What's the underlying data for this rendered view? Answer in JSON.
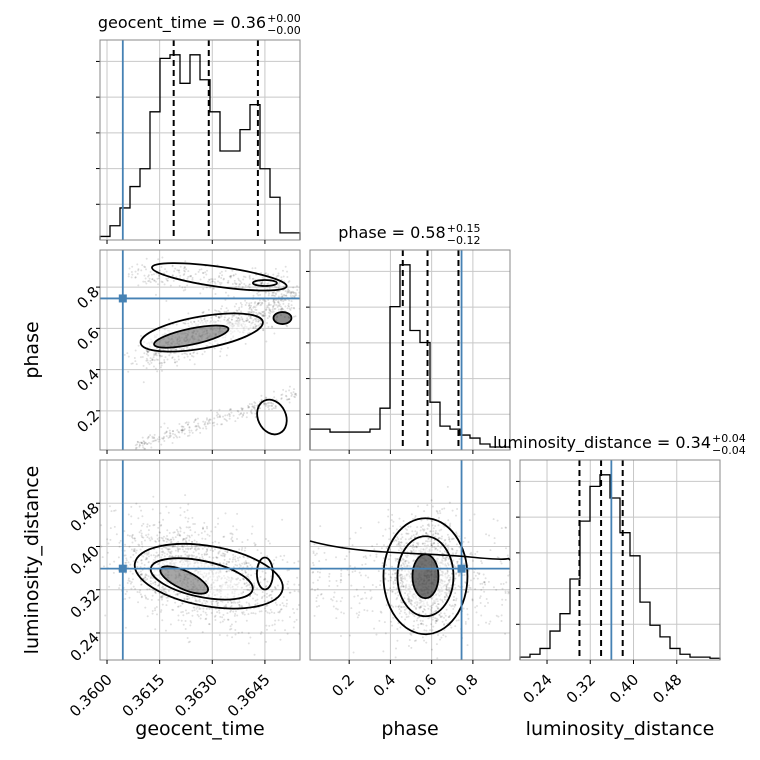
{
  "colors": {
    "truth": "#4682b4",
    "hist": "#000000",
    "grid": "#c8c8c8",
    "frame": "#888888"
  },
  "chart_data": {
    "type": "corner",
    "parameters": [
      "geocent_time",
      "phase",
      "luminosity_distance"
    ],
    "axis_labels": {
      "x": [
        "geocent_time",
        "phase",
        "luminosity_distance"
      ],
      "y": [
        "phase",
        "luminosity_distance"
      ]
    },
    "ranges": {
      "geocent_time": [
        0.3598,
        0.3655
      ],
      "phase": [
        0.01,
        0.98
      ],
      "luminosity_distance": [
        0.19,
        0.56
      ]
    },
    "ticks": {
      "geocent_time": [
        "0.3600",
        "0.3615",
        "0.3630",
        "0.3645"
      ],
      "phase": [
        "0.2",
        "0.4",
        "0.6",
        "0.8"
      ],
      "luminosity_distance": [
        "0.24",
        "0.32",
        "0.40",
        "0.48"
      ]
    },
    "truths": {
      "geocent_time": 0.36045,
      "phase": 0.745,
      "luminosity_distance": 0.359
    },
    "titles": [
      {
        "param": "geocent_time",
        "label": "geocent_time = 0.36",
        "plus": "+0.00",
        "minus": "−0.00"
      },
      {
        "param": "phase",
        "label": "phase = 0.58",
        "plus": "+0.15",
        "minus": "−0.12"
      },
      {
        "param": "luminosity_distance",
        "label": "luminosity_distance = 0.34",
        "plus": "+0.04",
        "minus": "−0.04"
      }
    ],
    "quantiles": {
      "geocent_time": [
        0.3619,
        0.3629,
        0.3643
      ],
      "phase": [
        0.46,
        0.58,
        0.73
      ],
      "luminosity_distance": [
        0.3,
        0.34,
        0.38
      ]
    },
    "histograms": {
      "geocent_time": [
        1,
        4,
        9,
        15,
        20,
        36,
        51,
        52,
        44,
        52,
        45,
        36,
        25,
        25,
        31,
        38,
        20,
        12,
        2,
        2
      ],
      "phase": [
        7,
        7,
        6,
        6,
        6,
        6,
        7,
        14,
        48,
        62,
        40,
        36,
        16,
        8,
        7,
        5,
        4,
        2,
        1,
        1
      ],
      "luminosity_distance": [
        0.5,
        1,
        2,
        5,
        8,
        14,
        24,
        30,
        32,
        28,
        22,
        18,
        10,
        6,
        4,
        2,
        1,
        0.5,
        0.5,
        0.3
      ]
    },
    "grid": true
  }
}
